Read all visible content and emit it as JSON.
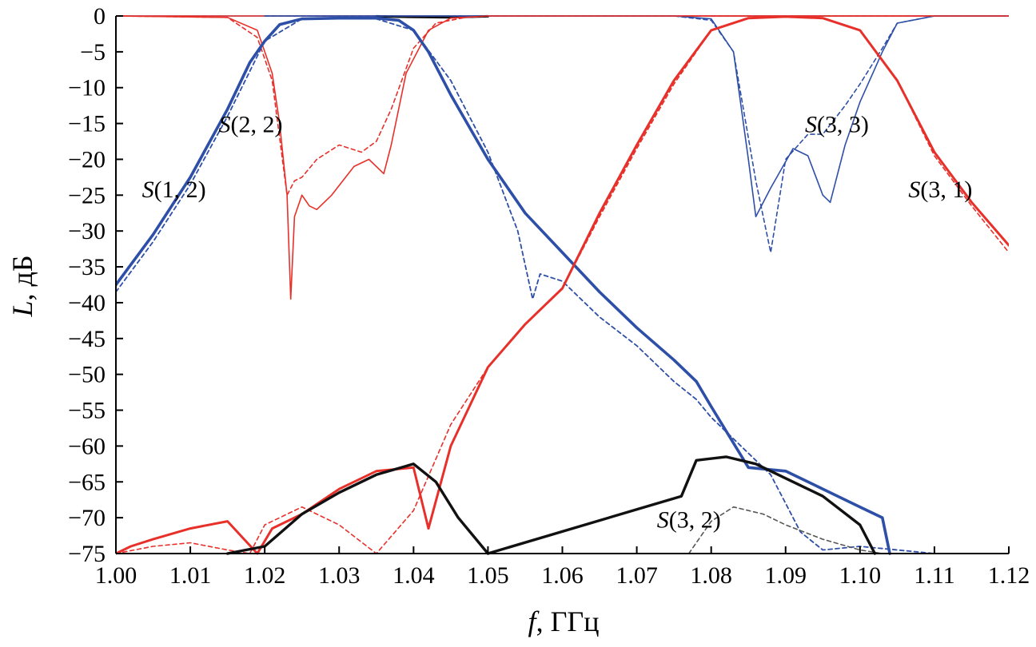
{
  "chart_data": {
    "type": "line",
    "xlabel_var": "f",
    "xlabel_unit": ", ГГц",
    "ylabel_var": "L",
    "ylabel_unit": ", дБ",
    "xlim": [
      1.0,
      1.12
    ],
    "ylim": [
      -75,
      0
    ],
    "xticks": [
      "1.00",
      "1.01",
      "1.02",
      "1.03",
      "1.04",
      "1.05",
      "1.06",
      "1.07",
      "1.08",
      "1.09",
      "1.10",
      "1.11",
      "1.12"
    ],
    "yticks": [
      "0",
      "-5",
      "-10",
      "-15",
      "-20",
      "-25",
      "-30",
      "-35",
      "-40",
      "-45",
      "-50",
      "-55",
      "-60",
      "-65",
      "-70",
      "-75"
    ],
    "grid": false,
    "colors": {
      "blue": "#2e4fa8",
      "red": "#e8302a",
      "black": "#111111",
      "dark_gray": "#555555"
    },
    "annotations": [
      {
        "id": "s12",
        "var": "S",
        "text": "(1, 2)",
        "x": 1.0035,
        "y": -25.3
      },
      {
        "id": "s22",
        "var": "S",
        "text": "(2, 2)",
        "x": 1.0138,
        "y": -16.2
      },
      {
        "id": "s33",
        "var": "S",
        "text": "(3, 3)",
        "x": 1.0926,
        "y": -16.2
      },
      {
        "id": "s31",
        "var": "S",
        "text": "(3, 1)",
        "x": 1.1065,
        "y": -25.3
      },
      {
        "id": "s32b",
        "var": "S",
        "text": "(3, 2)",
        "x": 1.0727,
        "y": -71.4
      }
    ],
    "series": [
      {
        "id": "s12_meas",
        "color": "blue",
        "style": "solid",
        "width": 3.6,
        "x": [
          1.0,
          1.005,
          1.01,
          1.015,
          1.018,
          1.02,
          1.022,
          1.025,
          1.03,
          1.035,
          1.038,
          1.04,
          1.042,
          1.045,
          1.05,
          1.055,
          1.06,
          1.065,
          1.07,
          1.075,
          1.078,
          1.08,
          1.085,
          1.09,
          1.095,
          1.1,
          1.103,
          1.104
        ],
        "y": [
          -37.5,
          -30.5,
          -22.5,
          -13,
          -6.5,
          -3.5,
          -1.2,
          -0.4,
          -0.3,
          -0.3,
          -0.6,
          -2,
          -5,
          -11,
          -20,
          -27.5,
          -33,
          -38.5,
          -43.5,
          -48,
          -51,
          -54.5,
          -63,
          -63.5,
          -66,
          -68.5,
          -70,
          -75
        ]
      },
      {
        "id": "s12_sim",
        "color": "blue",
        "style": "dash",
        "width": 1.8,
        "x": [
          1.0,
          1.005,
          1.01,
          1.015,
          1.02,
          1.025,
          1.03,
          1.035,
          1.04,
          1.045,
          1.05,
          1.054,
          1.056,
          1.057,
          1.06,
          1.065,
          1.07,
          1.075,
          1.078,
          1.08,
          1.085,
          1.088,
          1.09,
          1.092,
          1.095,
          1.1,
          1.105,
          1.11,
          1.12
        ],
        "y": [
          -38.5,
          -31.5,
          -23.5,
          -14,
          -3.5,
          -0.4,
          -0.3,
          -0.4,
          -2,
          -9,
          -19,
          -30,
          -39.5,
          -36,
          -37,
          -42,
          -46,
          -51,
          -53.5,
          -56,
          -61,
          -64,
          -68,
          -72,
          -74.5,
          -74,
          -74.5,
          -75,
          -75
        ]
      },
      {
        "id": "s33_meas",
        "color": "blue",
        "style": "solid",
        "width": 1.6,
        "x": [
          1.02,
          1.04,
          1.06,
          1.075,
          1.08,
          1.083,
          1.085,
          1.086,
          1.088,
          1.091,
          1.093,
          1.095,
          1.096,
          1.098,
          1.1,
          1.103,
          1.105,
          1.11,
          1.12
        ],
        "y": [
          0,
          0,
          0,
          0,
          -0.4,
          -5,
          -20,
          -28,
          -24,
          -18.5,
          -19.5,
          -25,
          -26,
          -18,
          -12,
          -5,
          -1,
          0,
          0
        ]
      },
      {
        "id": "s33_sim",
        "color": "blue",
        "style": "dash",
        "width": 1.6,
        "x": [
          1.02,
          1.06,
          1.075,
          1.08,
          1.083,
          1.086,
          1.088,
          1.09,
          1.093,
          1.095,
          1.098,
          1.1,
          1.103,
          1.105,
          1.11,
          1.12
        ],
        "y": [
          0,
          0,
          0,
          -0.6,
          -5,
          -23,
          -33,
          -20,
          -16.5,
          -16.5,
          -12.5,
          -9.5,
          -4.5,
          -1,
          0,
          0
        ]
      },
      {
        "id": "s31_meas",
        "color": "red",
        "style": "solid",
        "width": 3.0,
        "x": [
          1.0,
          1.002,
          1.005,
          1.01,
          1.015,
          1.019,
          1.021,
          1.025,
          1.03,
          1.035,
          1.04,
          1.042,
          1.045,
          1.05,
          1.055,
          1.06,
          1.065,
          1.07,
          1.075,
          1.08,
          1.085,
          1.09,
          1.095,
          1.1,
          1.105,
          1.11,
          1.115,
          1.12
        ],
        "y": [
          -75,
          -74,
          -73,
          -71.5,
          -70.5,
          -75,
          -71.5,
          -69.5,
          -66,
          -63.5,
          -63,
          -71.5,
          -60,
          -49,
          -43,
          -38,
          -27.5,
          -18,
          -9,
          -2,
          -0.3,
          -0.1,
          -0.3,
          -2,
          -9,
          -19,
          -26,
          -32
        ]
      },
      {
        "id": "s31_sim",
        "color": "red",
        "style": "dash",
        "width": 1.6,
        "x": [
          1.0,
          1.005,
          1.01,
          1.015,
          1.018,
          1.02,
          1.025,
          1.03,
          1.035,
          1.04,
          1.045,
          1.05,
          1.055,
          1.06,
          1.065,
          1.07,
          1.075,
          1.08,
          1.085,
          1.09,
          1.095,
          1.1,
          1.105,
          1.11,
          1.115,
          1.12
        ],
        "y": [
          -75,
          -74,
          -73.5,
          -74.5,
          -75,
          -71,
          -68.5,
          -71,
          -75,
          -69,
          -57,
          -49,
          -43,
          -38,
          -28,
          -18.5,
          -9.5,
          -2,
          -0.3,
          -0.1,
          -0.3,
          -2,
          -9,
          -19.5,
          -26.5,
          -33
        ]
      },
      {
        "id": "s22_meas",
        "color": "red",
        "style": "solid",
        "width": 1.6,
        "x": [
          1.0,
          1.015,
          1.019,
          1.021,
          1.022,
          1.023,
          1.0235,
          1.024,
          1.025,
          1.026,
          1.027,
          1.029,
          1.032,
          1.034,
          1.036,
          1.037,
          1.039,
          1.042,
          1.045,
          1.05,
          1.06,
          1.12
        ],
        "y": [
          0,
          -0.2,
          -2,
          -8,
          -15,
          -25,
          -39.5,
          -28,
          -25,
          -26.5,
          -27,
          -25,
          -21,
          -20,
          -22,
          -18,
          -8,
          -2,
          -0.3,
          0,
          0,
          0
        ]
      },
      {
        "id": "s22_sim",
        "color": "red",
        "style": "dash",
        "width": 1.6,
        "x": [
          1.0,
          1.015,
          1.019,
          1.021,
          1.022,
          1.023,
          1.024,
          1.025,
          1.027,
          1.03,
          1.033,
          1.035,
          1.037,
          1.04,
          1.043,
          1.047,
          1.05,
          1.12
        ],
        "y": [
          0,
          -0.2,
          -3,
          -9,
          -17,
          -25,
          -23,
          -22.5,
          -20,
          -18,
          -19,
          -17.5,
          -13,
          -4.5,
          -1,
          -0.2,
          0,
          0
        ]
      },
      {
        "id": "s32_meas",
        "color": "black",
        "style": "solid",
        "width": 3.4,
        "x": [
          1.015,
          1.02,
          1.025,
          1.03,
          1.035,
          1.04,
          1.043,
          1.046,
          1.05,
          1.076,
          1.078,
          1.082,
          1.086,
          1.09,
          1.095,
          1.1,
          1.102
        ],
        "y": [
          -75,
          -74,
          -69.5,
          -66.5,
          -64,
          -62.5,
          -65,
          -70,
          -75,
          -67,
          -62,
          -61.5,
          -62.5,
          -64.5,
          -67,
          -71,
          -75
        ]
      },
      {
        "id": "s32_sim",
        "color": "dark_gray",
        "style": "dash",
        "width": 1.6,
        "x": [
          1.077,
          1.08,
          1.083,
          1.087,
          1.09,
          1.095,
          1.1,
          1.103
        ],
        "y": [
          -75,
          -70.5,
          -68.5,
          -69.5,
          -71,
          -73,
          -74.5,
          -75
        ]
      },
      {
        "id": "s32_meas_top",
        "color": "black",
        "style": "solid",
        "width": 3.0,
        "x": [
          1.035,
          1.04,
          1.045,
          1.05
        ],
        "y": [
          -0.05,
          -0.15,
          -0.2,
          -0.05
        ]
      },
      {
        "id": "top_line_blue",
        "color": "blue",
        "style": "solid",
        "width": 1.5,
        "x": [
          1.0,
          1.12
        ],
        "y": [
          0,
          0
        ]
      },
      {
        "id": "top_line_red",
        "color": "red",
        "style": "solid",
        "width": 1.5,
        "x": [
          1.0,
          1.12
        ],
        "y": [
          0,
          0
        ]
      }
    ]
  }
}
